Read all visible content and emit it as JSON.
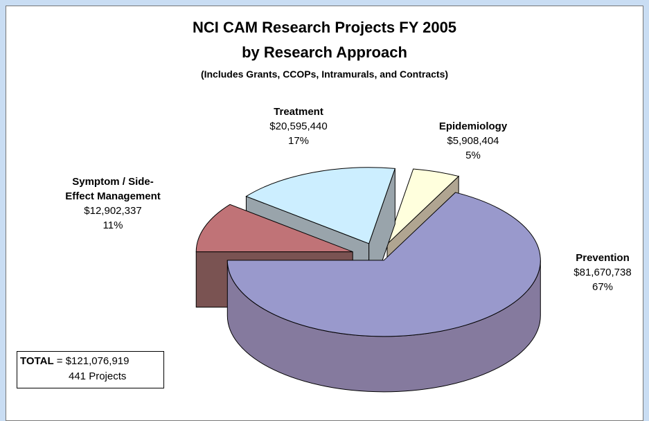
{
  "chart_data": {
    "type": "pie",
    "title": "NCI CAM Research Projects FY 2005",
    "subtitle": "by Research Approach",
    "note": "(Includes Grants, CCOPs, Intramurals, and Contracts)",
    "categories": [
      "Epidemiology",
      "Prevention",
      "Symptom / Side-Effect Management",
      "Treatment"
    ],
    "values": [
      5908404,
      81670738,
      12902337,
      20595440
    ],
    "value_labels": [
      "$5,908,404",
      "$81,670,738",
      "$12,902,337",
      "$20,595,440"
    ],
    "percent_labels": [
      "5%",
      "67%",
      "11%",
      "17%"
    ],
    "colors": [
      "#ffffdd",
      "#9999cc",
      "#c07377",
      "#cceeff"
    ],
    "side_colors": [
      "#b0a591",
      "#857a9e",
      "#7a5352",
      "#99a4ab"
    ],
    "total_label": "TOTAL",
    "total": "= $121,076,919",
    "projects": "441 Projects"
  }
}
